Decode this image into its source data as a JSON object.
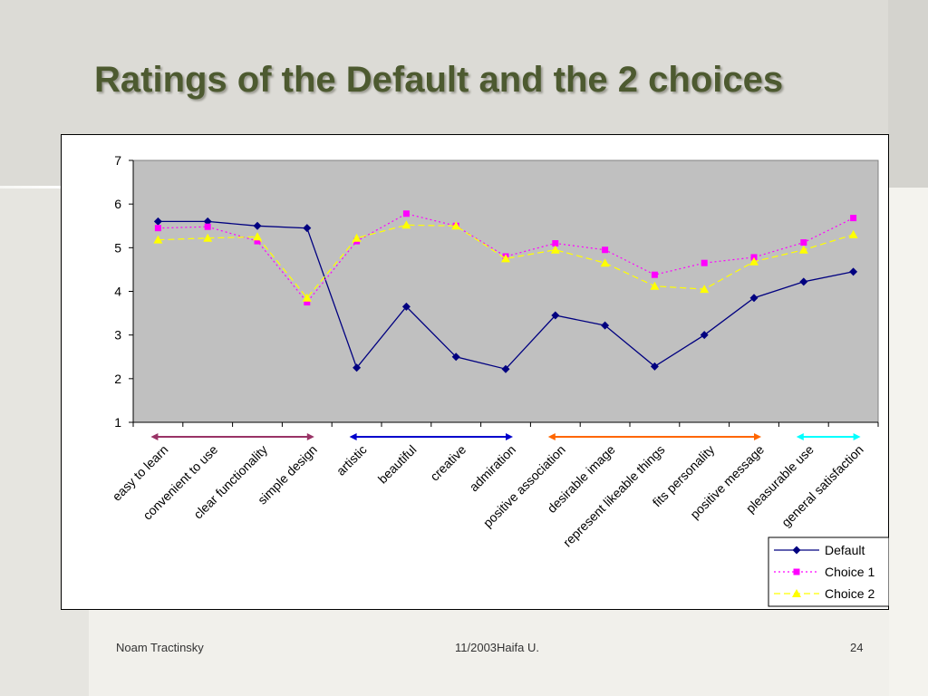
{
  "slide": {
    "title": "Ratings of the Default and the 2 choices",
    "footer_author": "Noam Tractinsky",
    "footer_date": "11/2003Haifa U.",
    "page_number": "24"
  },
  "chart_data": {
    "type": "line",
    "categories": [
      "easy to learn",
      "convenient to use",
      "clear functionality",
      "simple design",
      "artistic",
      "beautiful",
      "creative",
      "admiration",
      "positive association",
      "desirable image",
      "represent likeable things",
      "fits personality",
      "positive message",
      "pleasurable use",
      "general satisfaction"
    ],
    "series": [
      {
        "name": "Default",
        "color": "#000080",
        "line": "solid",
        "marker": "diamond",
        "values": [
          5.6,
          5.6,
          5.5,
          5.45,
          2.25,
          3.65,
          2.5,
          2.22,
          3.45,
          3.22,
          2.28,
          3.0,
          3.85,
          4.22,
          4.45
        ]
      },
      {
        "name": "Choice 1",
        "color": "#ff00ff",
        "line": "dotted",
        "marker": "square",
        "values": [
          5.45,
          5.48,
          5.15,
          3.75,
          5.15,
          5.78,
          5.5,
          4.8,
          5.1,
          4.95,
          4.38,
          4.65,
          4.78,
          5.12,
          5.68
        ]
      },
      {
        "name": "Choice 2",
        "color": "#ffff00",
        "line": "dashed",
        "marker": "triangle",
        "values": [
          5.18,
          5.22,
          5.25,
          3.85,
          5.22,
          5.52,
          5.5,
          4.75,
          4.95,
          4.65,
          4.12,
          4.05,
          4.68,
          4.95,
          5.3
        ]
      }
    ],
    "ylim": [
      1,
      7
    ],
    "yticks": [
      "1",
      "2",
      "3",
      "4",
      "5",
      "6",
      "7"
    ],
    "grid": false,
    "plot_background": "#c0c0c0",
    "legend_position": "bottom-right",
    "group_brackets": [
      {
        "from": 0,
        "to": 3,
        "color": "#993366"
      },
      {
        "from": 4,
        "to": 7,
        "color": "#0000cc"
      },
      {
        "from": 8,
        "to": 12,
        "color": "#ff6600"
      },
      {
        "from": 13,
        "to": 14,
        "color": "#00ffff"
      }
    ]
  }
}
